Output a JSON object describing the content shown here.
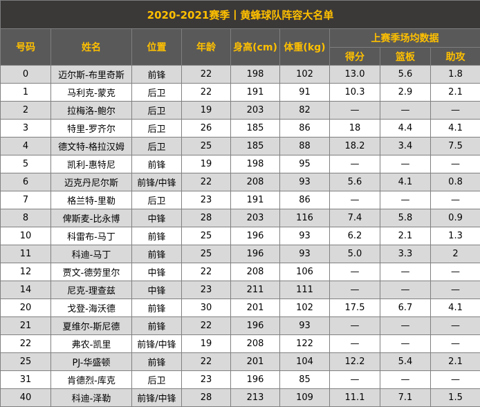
{
  "title": "2020-2021赛季丨黄蜂球队阵容大名单",
  "headers": {
    "number": "号码",
    "name": "姓名",
    "position": "位置",
    "age": "年龄",
    "height": "身高(cm)",
    "weight": "体重(kg)",
    "stats_group": "上赛季场均数据",
    "points": "得分",
    "rebounds": "篮板",
    "assists": "助攻"
  },
  "rows": [
    {
      "number": "0",
      "name": "迈尔斯-布里奇斯",
      "position": "前锋",
      "age": "22",
      "height": "198",
      "weight": "102",
      "points": "13.0",
      "rebounds": "5.6",
      "assists": "1.8"
    },
    {
      "number": "1",
      "name": "马利克-蒙克",
      "position": "后卫",
      "age": "22",
      "height": "191",
      "weight": "91",
      "points": "10.3",
      "rebounds": "2.9",
      "assists": "2.1"
    },
    {
      "number": "2",
      "name": "拉梅洛-鲍尔",
      "position": "后卫",
      "age": "19",
      "height": "203",
      "weight": "82",
      "points": "—",
      "rebounds": "—",
      "assists": "—"
    },
    {
      "number": "3",
      "name": "特里-罗齐尔",
      "position": "后卫",
      "age": "26",
      "height": "185",
      "weight": "86",
      "points": "18",
      "rebounds": "4.4",
      "assists": "4.1"
    },
    {
      "number": "4",
      "name": "德文特-格拉汉姆",
      "position": "后卫",
      "age": "25",
      "height": "185",
      "weight": "88",
      "points": "18.2",
      "rebounds": "3.4",
      "assists": "7.5"
    },
    {
      "number": "5",
      "name": "凯利-惠特尼",
      "position": "前锋",
      "age": "19",
      "height": "198",
      "weight": "95",
      "points": "—",
      "rebounds": "—",
      "assists": "—"
    },
    {
      "number": "6",
      "name": "迈克丹尼尔斯",
      "position": "前锋/中锋",
      "age": "22",
      "height": "208",
      "weight": "93",
      "points": "5.6",
      "rebounds": "4.1",
      "assists": "0.8"
    },
    {
      "number": "7",
      "name": "格兰特-里勒",
      "position": "后卫",
      "age": "23",
      "height": "191",
      "weight": "86",
      "points": "—",
      "rebounds": "—",
      "assists": "—"
    },
    {
      "number": "8",
      "name": "俾斯麦-比永博",
      "position": "中锋",
      "age": "28",
      "height": "203",
      "weight": "116",
      "points": "7.4",
      "rebounds": "5.8",
      "assists": "0.9"
    },
    {
      "number": "10",
      "name": "科雷布-马丁",
      "position": "前锋",
      "age": "25",
      "height": "196",
      "weight": "93",
      "points": "6.2",
      "rebounds": "2.1",
      "assists": "1.3"
    },
    {
      "number": "11",
      "name": "科迪-马丁",
      "position": "前锋",
      "age": "25",
      "height": "196",
      "weight": "93",
      "points": "5.0",
      "rebounds": "3.3",
      "assists": "2"
    },
    {
      "number": "12",
      "name": "贾文-德劳里尔",
      "position": "中锋",
      "age": "22",
      "height": "208",
      "weight": "106",
      "points": "—",
      "rebounds": "—",
      "assists": "—"
    },
    {
      "number": "14",
      "name": "尼克-理查兹",
      "position": "中锋",
      "age": "23",
      "height": "211",
      "weight": "111",
      "points": "—",
      "rebounds": "—",
      "assists": "—"
    },
    {
      "number": "20",
      "name": "戈登-海沃德",
      "position": "前锋",
      "age": "30",
      "height": "201",
      "weight": "102",
      "points": "17.5",
      "rebounds": "6.7",
      "assists": "4.1"
    },
    {
      "number": "21",
      "name": "夏维尔-斯尼德",
      "position": "前锋",
      "age": "22",
      "height": "196",
      "weight": "93",
      "points": "—",
      "rebounds": "—",
      "assists": "—"
    },
    {
      "number": "22",
      "name": "弗农-凯里",
      "position": "前锋/中锋",
      "age": "19",
      "height": "208",
      "weight": "122",
      "points": "—",
      "rebounds": "—",
      "assists": "—"
    },
    {
      "number": "25",
      "name": "PJ-华盛顿",
      "position": "前锋",
      "age": "22",
      "height": "201",
      "weight": "104",
      "points": "12.2",
      "rebounds": "5.4",
      "assists": "2.1"
    },
    {
      "number": "31",
      "name": "肯德烈-库克",
      "position": "后卫",
      "age": "23",
      "height": "196",
      "weight": "85",
      "points": "—",
      "rebounds": "—",
      "assists": "—"
    },
    {
      "number": "40",
      "name": "科迪-泽勒",
      "position": "前锋/中锋",
      "age": "28",
      "height": "213",
      "weight": "109",
      "points": "11.1",
      "rebounds": "7.1",
      "assists": "1.5"
    }
  ]
}
